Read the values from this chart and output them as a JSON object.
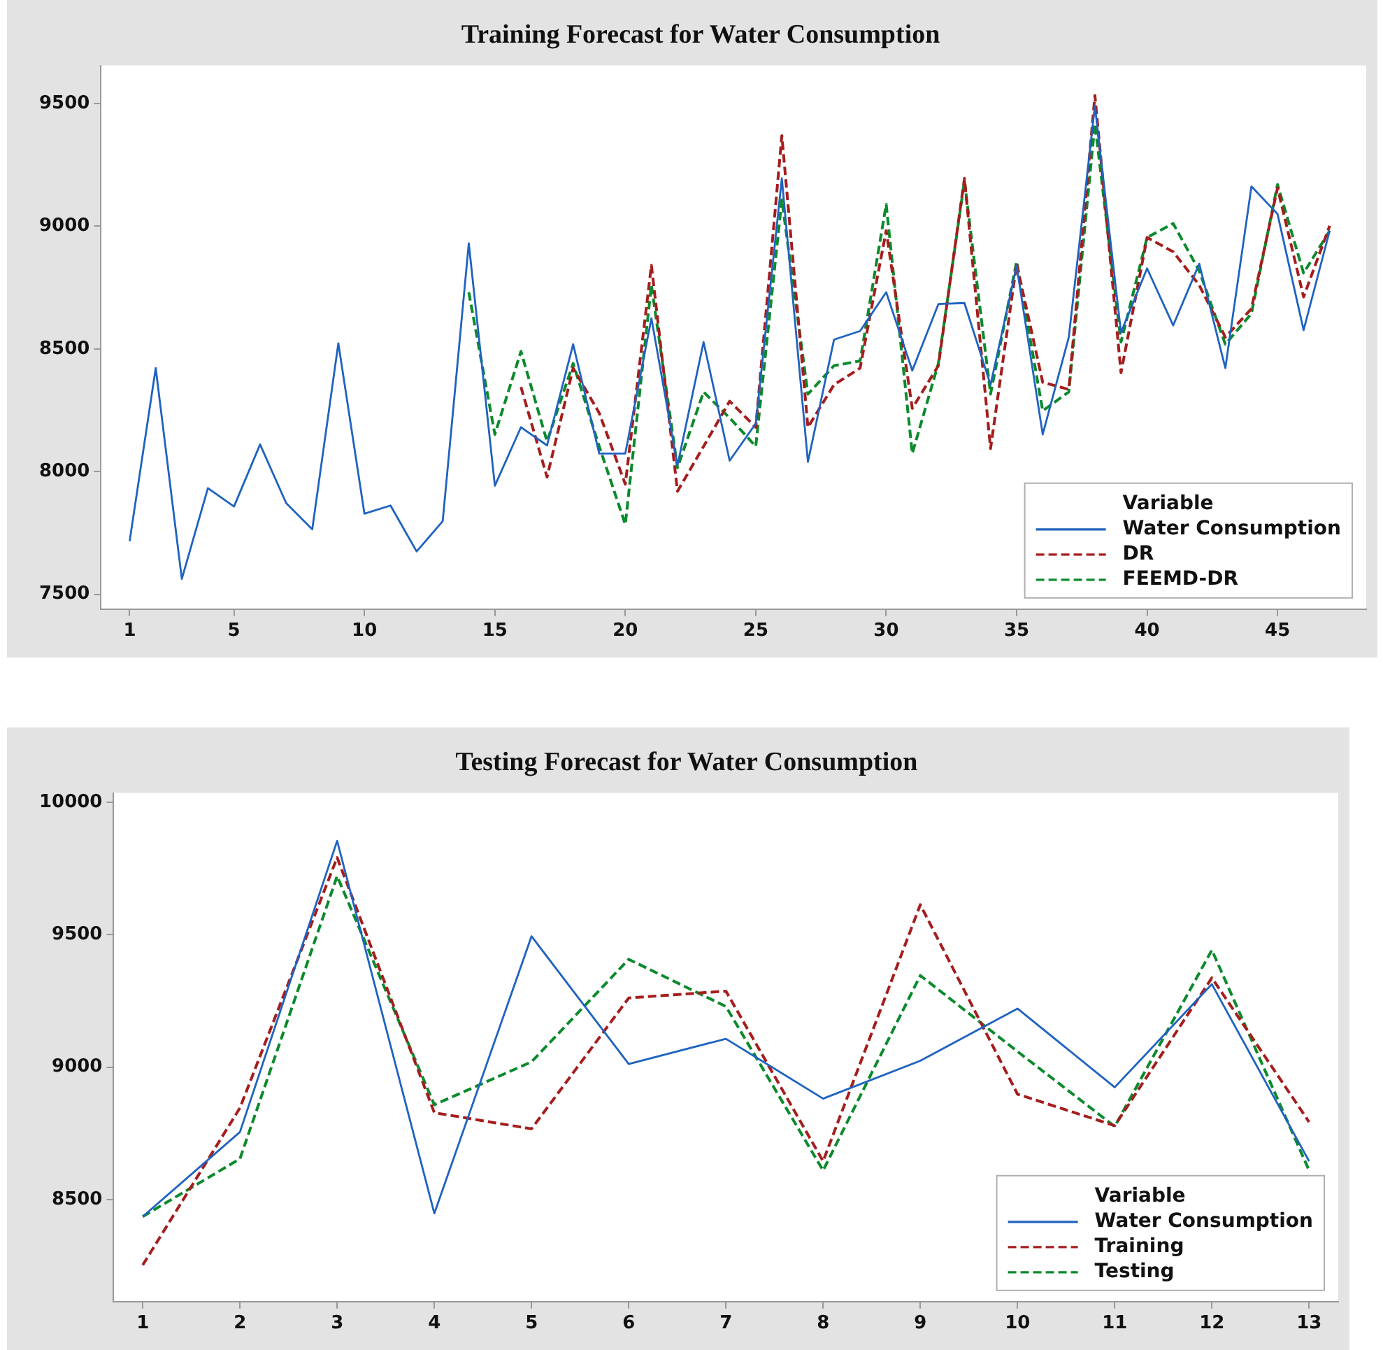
{
  "chart_data": [
    {
      "type": "line",
      "title": "Training Forecast for Water Consumption",
      "legend_title": "Variable",
      "legend": "bottom right",
      "grid": false,
      "marker": "none",
      "x": [
        1,
        2,
        3,
        4,
        5,
        6,
        7,
        8,
        9,
        10,
        11,
        12,
        13,
        14,
        15,
        16,
        17,
        18,
        19,
        20,
        21,
        22,
        23,
        24,
        25,
        26,
        27,
        28,
        29,
        30,
        31,
        32,
        33,
        34,
        35,
        36,
        37,
        38,
        39,
        40,
        41,
        42,
        43,
        44,
        45,
        46,
        47
      ],
      "xlim": [
        -0.1,
        48.4
      ],
      "xticks": [
        1,
        5,
        10,
        15,
        20,
        25,
        30,
        35,
        40,
        45
      ],
      "ylim": [
        7440,
        9655
      ],
      "yticks": [
        7500,
        8000,
        8500,
        9000,
        9500
      ],
      "series": [
        {
          "name": "Water Consumption",
          "color": "#1f63c0",
          "line_style": "solid",
          "values": [
            7717,
            8422,
            7563,
            7933,
            7858,
            8111,
            7872,
            7765,
            8523,
            7829,
            7862,
            7675,
            7798,
            8930,
            7943,
            8181,
            8107,
            8519,
            8074,
            8074,
            8625,
            8026,
            8528,
            8045,
            8196,
            9195,
            8040,
            8538,
            8573,
            8731,
            8412,
            8683,
            8687,
            8354,
            8838,
            8152,
            8548,
            9490,
            8567,
            8828,
            8596,
            8847,
            8422,
            9162,
            9050,
            8577,
            8982
          ]
        },
        {
          "name": "DR",
          "color": "#a51d1d",
          "line_style": "dashed",
          "values": [
            null,
            null,
            null,
            null,
            null,
            null,
            null,
            null,
            null,
            null,
            null,
            null,
            null,
            null,
            null,
            8345,
            7978,
            8422,
            8239,
            7949,
            8841,
            7920,
            8103,
            8287,
            8181,
            9369,
            8181,
            8354,
            8422,
            8982,
            8258,
            8432,
            9195,
            8094,
            8847,
            8364,
            8335,
            9533,
            8403,
            8954,
            8896,
            8760,
            8548,
            8664,
            9156,
            8712,
            9002
          ]
        },
        {
          "name": "FEEMD-DR",
          "color": "#0b8a2c",
          "line_style": "dashed",
          "values": [
            null,
            null,
            null,
            null,
            null,
            null,
            null,
            null,
            null,
            null,
            null,
            null,
            null,
            8731,
            8152,
            8490,
            8123,
            8441,
            8103,
            7785,
            8760,
            8016,
            8325,
            8219,
            8103,
            9108,
            8316,
            8432,
            8451,
            9089,
            8074,
            8441,
            9185,
            8316,
            8857,
            8248,
            8325,
            9417,
            8528,
            8954,
            9011,
            8818,
            8519,
            8644,
            9170,
            8809,
            8982
          ]
        }
      ]
    },
    {
      "type": "line",
      "title": "Testing Forecast for Water Consumption",
      "legend_title": "Variable",
      "legend": "bottom right",
      "grid": false,
      "marker": "none",
      "x": [
        1,
        2,
        3,
        4,
        5,
        6,
        7,
        8,
        9,
        10,
        11,
        12,
        13
      ],
      "xlim": [
        0.7,
        13.3
      ],
      "xticks": [
        1,
        2,
        3,
        4,
        5,
        6,
        7,
        8,
        9,
        10,
        11,
        12,
        13
      ],
      "ylim": [
        8115,
        10035
      ],
      "yticks": [
        8500,
        9000,
        9500,
        10000
      ],
      "series": [
        {
          "name": "Water Consumption",
          "color": "#1f63c0",
          "line_style": "solid",
          "values": [
            8436,
            8755,
            9854,
            8448,
            9494,
            9012,
            9107,
            8881,
            9024,
            9221,
            8924,
            9313,
            8645
          ]
        },
        {
          "name": "Training",
          "color": "#a51d1d",
          "line_style": "dashed",
          "values": [
            8253,
            8846,
            9791,
            8828,
            8767,
            9261,
            9287,
            8645,
            9613,
            8898,
            8779,
            9337,
            8793
          ]
        },
        {
          "name": "Testing",
          "color": "#0b8a2c",
          "line_style": "dashed",
          "values": [
            8436,
            8654,
            9721,
            8858,
            9020,
            9407,
            9229,
            8610,
            9346,
            9059,
            8776,
            9442,
            8610
          ]
        }
      ]
    }
  ]
}
